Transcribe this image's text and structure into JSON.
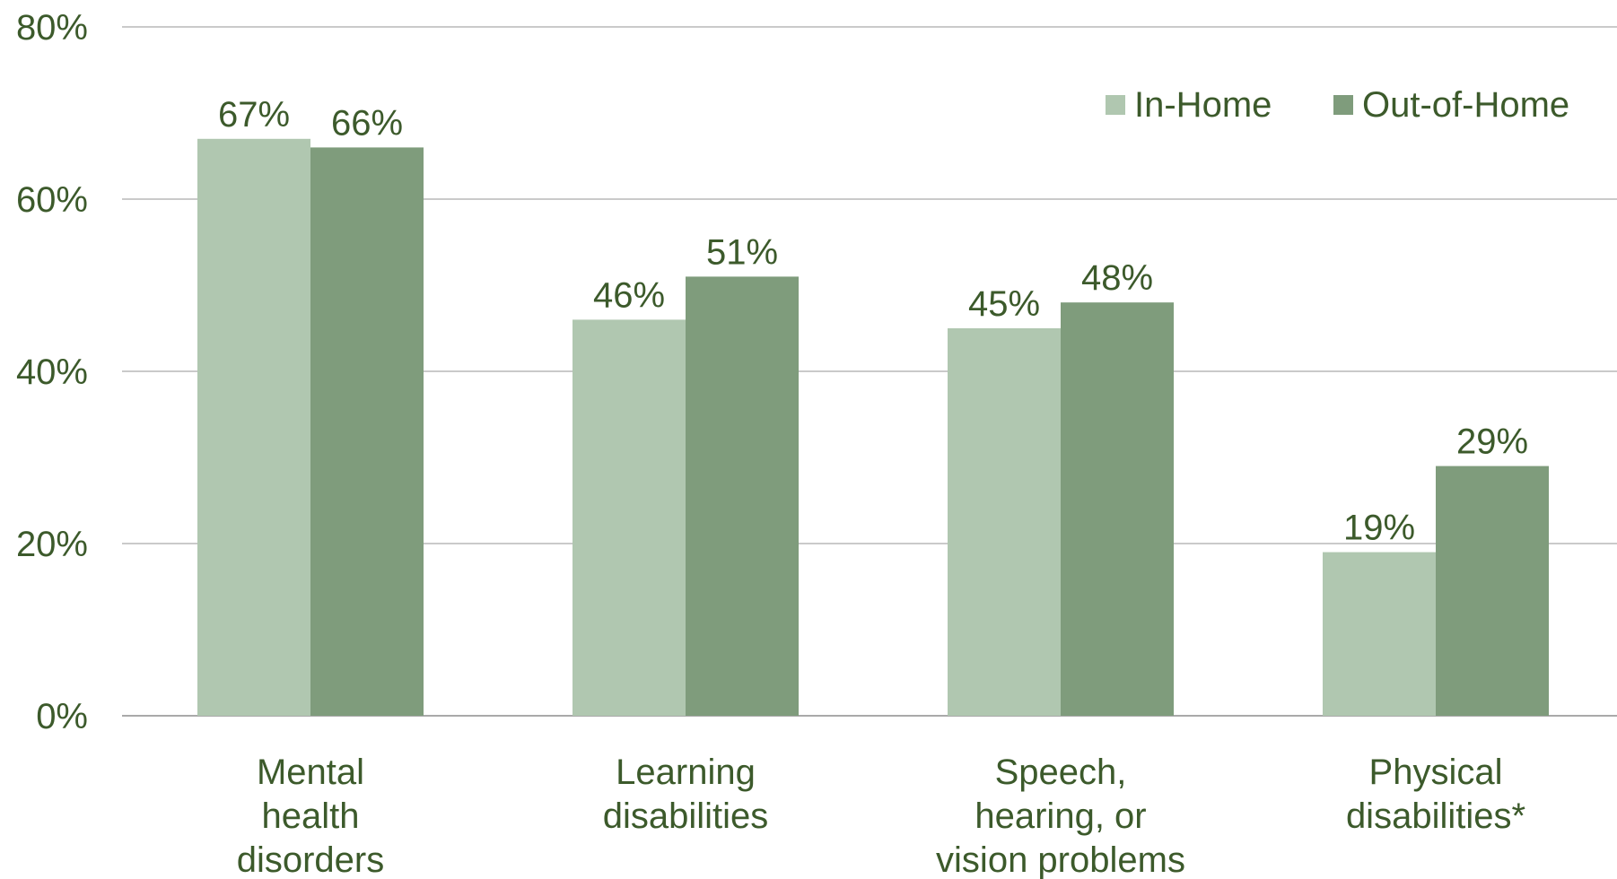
{
  "chart_data": {
    "type": "bar",
    "categories": [
      [
        "Mental",
        "health",
        "disorders"
      ],
      [
        "Learning",
        "disabilities"
      ],
      [
        "Speech,",
        "hearing, or",
        "vision problems"
      ],
      [
        "Physical",
        "disabilities*"
      ]
    ],
    "series": [
      {
        "name": "In-Home",
        "values": [
          67,
          46,
          45,
          19
        ],
        "labels": [
          "67%",
          "46%",
          "45%",
          "19%"
        ],
        "color": "#b0c7b0"
      },
      {
        "name": "Out-of-Home",
        "values": [
          66,
          51,
          48,
          29
        ],
        "labels": [
          "66%",
          "51%",
          "48%",
          "29%"
        ],
        "color": "#7f9c7c"
      }
    ],
    "yticks": [
      "0%",
      "20%",
      "40%",
      "60%",
      "80%"
    ],
    "ylim": [
      0,
      80
    ],
    "grid": true,
    "legend_position": "top-right",
    "text_color": "#3c5a2b",
    "title": "",
    "xlabel": "",
    "ylabel": ""
  }
}
